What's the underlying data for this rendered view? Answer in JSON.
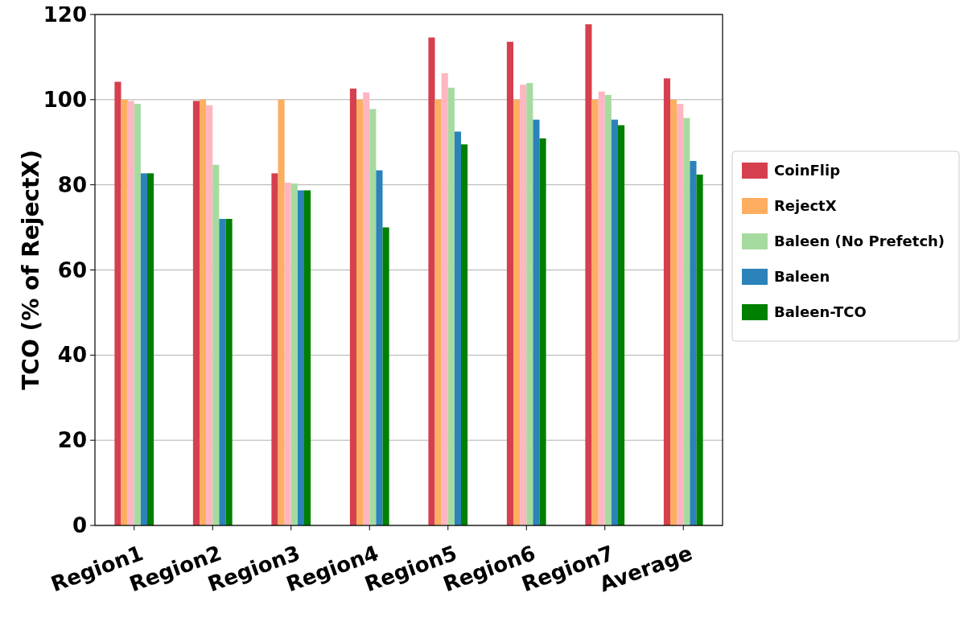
{
  "chart_data": {
    "type": "bar",
    "ylabel": "TCO (% of RejectX)",
    "categories": [
      "Region1",
      "Region2",
      "Region3",
      "Region4",
      "Region5",
      "Region6",
      "Region7",
      "Average"
    ],
    "series": [
      {
        "name": "CoinFlip",
        "color": "#d6404e",
        "values": [
          104.2,
          99.7,
          82.7,
          102.6,
          114.6,
          113.6,
          117.7,
          105
        ]
      },
      {
        "name": "RejectX",
        "color": "#fdae61",
        "values": [
          100,
          100,
          100,
          100,
          100,
          100,
          100,
          100
        ]
      },
      {
        "color": "#ffb6c1",
        "values": [
          99.7,
          98.7,
          80.5,
          101.7,
          106.2,
          103.5,
          101.9,
          99
        ]
      },
      {
        "name": "Baleen (No Prefetch)",
        "color": "#a6dba0",
        "values": [
          99,
          84.7,
          80.3,
          97.8,
          102.8,
          103.9,
          101.1,
          95.7
        ]
      },
      {
        "name": "Baleen",
        "color": "#2b83ba",
        "values": [
          82.7,
          72,
          78.7,
          83.4,
          92.5,
          95.3,
          95.3,
          85.6
        ]
      },
      {
        "name": "Baleen-TCO",
        "color": "#008000",
        "values": [
          82.7,
          72,
          78.7,
          70,
          89.5,
          90.9,
          94,
          82.4
        ]
      }
    ],
    "ylim": [
      0,
      120
    ],
    "yticks": [
      0,
      20,
      40,
      60,
      80,
      100,
      120
    ],
    "grid": "y",
    "legend": "right"
  }
}
